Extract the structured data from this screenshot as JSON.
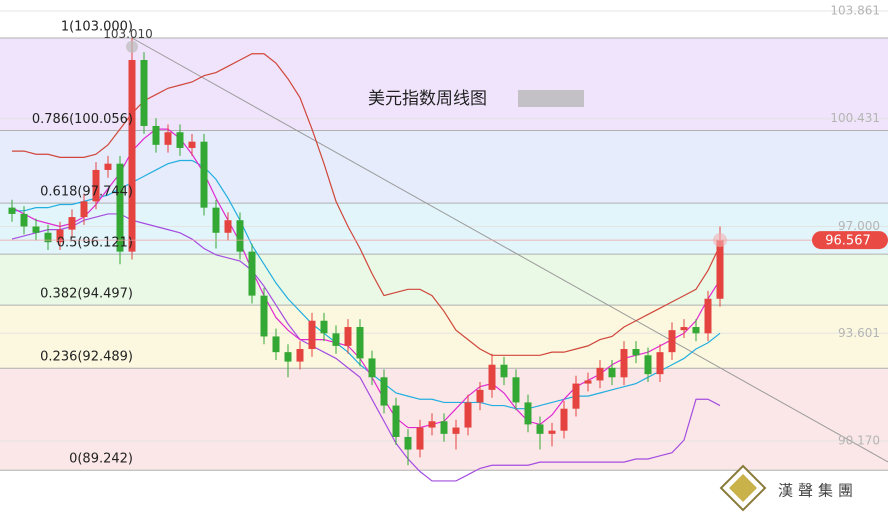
{
  "chart_data": {
    "type": "candlestick",
    "title": "美元指数周线图",
    "brand": "漢聲集團",
    "ylim": [
      87.88,
      104.21
    ],
    "yticks": [
      103.861,
      100.431,
      {
        "value": 97,
        "label": "97.000"
      },
      93.601,
      {
        "value": 90.17,
        "label": "90.170"
      }
    ],
    "grid": true,
    "up_color": "#e5433f",
    "down_color": "#34a834",
    "fib_levels": [
      {
        "value": 103.0,
        "label": "1(103.000)"
      },
      {
        "value": 100.056,
        "label": "0.786(100.056)"
      },
      {
        "value": 97.744,
        "label": "0.618(97.744)"
      },
      {
        "value": 96.121,
        "label": "0.5(96.121)"
      },
      {
        "value": 94.497,
        "label": "0.382(94.497)"
      },
      {
        "value": 92.489,
        "label": "0.236(92.489)"
      },
      {
        "value": 89.242,
        "label": "0(89.242)"
      }
    ],
    "fib_colors": [
      "#efe4fb",
      "#e6ecfb",
      "#e2f5fb",
      "#eaf8e6",
      "#fbf8df",
      "#fbe7e7"
    ],
    "high_label": {
      "value": 103.01,
      "label": "103.010"
    },
    "last_label": {
      "value": 96.567,
      "label": "96.567"
    },
    "candles": {
      "open": [
        97.6,
        97.4,
        97.0,
        96.8,
        96.5,
        96.9,
        97.3,
        97.8,
        98.8,
        99.0,
        96.2,
        102.3,
        100.2,
        99.6,
        100.0,
        99.5,
        99.7,
        97.6,
        96.8,
        97.2,
        96.2,
        94.8,
        93.5,
        93.0,
        92.7,
        93.1,
        94.0,
        93.6,
        93.2,
        93.8,
        92.8,
        92.2,
        91.3,
        90.3,
        89.9,
        90.6,
        90.8,
        90.4,
        90.6,
        91.4,
        91.8,
        92.6,
        92.2,
        91.4,
        90.7,
        90.4,
        90.5,
        91.2,
        92.0,
        92.1,
        92.5,
        92.2,
        93.1,
        92.9,
        92.3,
        93.0,
        93.7,
        93.8,
        93.6,
        94.7
      ],
      "high": [
        97.85,
        97.65,
        97.25,
        97.05,
        97.15,
        97.55,
        98.05,
        99.05,
        99.25,
        99.25,
        103.01,
        102.55,
        100.45,
        100.25,
        100.25,
        99.95,
        99.95,
        97.85,
        97.45,
        97.45,
        96.45,
        95.05,
        93.75,
        93.25,
        93.35,
        94.25,
        94.25,
        93.85,
        94.05,
        94.05,
        93.05,
        92.45,
        91.55,
        90.55,
        90.85,
        91.05,
        91.05,
        90.85,
        91.65,
        92.05,
        92.95,
        92.85,
        92.45,
        91.65,
        90.95,
        90.75,
        91.45,
        92.25,
        92.35,
        92.75,
        92.75,
        93.35,
        93.35,
        93.15,
        93.25,
        93.95,
        94.05,
        94.05,
        94.95,
        97.0
      ],
      "low": [
        97.15,
        96.75,
        96.55,
        96.25,
        96.25,
        96.65,
        97.05,
        97.55,
        98.55,
        95.8,
        95.95,
        99.95,
        99.35,
        99.35,
        99.25,
        99.25,
        97.35,
        96.3,
        96.55,
        95.95,
        94.55,
        93.25,
        92.75,
        92.2,
        92.45,
        92.85,
        93.35,
        92.95,
        92.95,
        92.55,
        91.95,
        91.05,
        90.05,
        89.4,
        89.65,
        90.35,
        90.15,
        89.9,
        90.35,
        91.15,
        91.55,
        91.95,
        91.15,
        90.45,
        89.9,
        90.0,
        90.25,
        90.95,
        91.75,
        91.85,
        91.95,
        91.95,
        92.65,
        92.05,
        92.05,
        92.75,
        93.45,
        93.35,
        93.35,
        94.45
      ],
      "close": [
        97.4,
        97.0,
        96.8,
        96.5,
        96.9,
        97.3,
        97.8,
        98.8,
        99.0,
        96.2,
        102.3,
        100.2,
        99.6,
        100.0,
        99.5,
        99.7,
        97.6,
        96.8,
        97.2,
        96.2,
        94.8,
        93.5,
        93.0,
        92.7,
        93.1,
        94.0,
        93.6,
        93.2,
        93.8,
        92.8,
        92.2,
        91.3,
        90.3,
        89.9,
        90.6,
        90.8,
        90.4,
        90.6,
        91.4,
        91.8,
        92.6,
        92.2,
        91.4,
        90.7,
        90.4,
        90.5,
        91.2,
        92.0,
        92.1,
        92.5,
        92.2,
        93.1,
        92.9,
        92.3,
        93.0,
        93.7,
        93.8,
        93.6,
        94.7,
        96.567
      ]
    },
    "lines": [
      {
        "color": "#d0463a",
        "values": [
          99.4,
          99.4,
          99.3,
          99.3,
          99.2,
          99.2,
          99.2,
          99.3,
          99.6,
          100.1,
          100.6,
          101.0,
          101.2,
          101.4,
          101.5,
          101.6,
          101.8,
          101.9,
          102.1,
          102.3,
          102.5,
          102.5,
          102.2,
          101.7,
          101.1,
          100.1,
          99.0,
          97.8,
          97.0,
          96.3,
          95.5,
          94.8,
          94.9,
          95.0,
          95.0,
          94.8,
          94.3,
          93.7,
          93.4,
          93.1,
          92.9,
          92.9,
          92.9,
          92.9,
          92.9,
          93.0,
          93.0,
          93.1,
          93.2,
          93.4,
          93.5,
          93.8,
          94.0,
          94.2,
          94.4,
          94.6,
          94.8,
          95.0,
          95.6,
          96.4
        ]
      },
      {
        "color": "#a44ee0",
        "values": [
          96.6,
          96.7,
          96.8,
          96.9,
          96.9,
          97.0,
          97.2,
          97.3,
          97.4,
          97.4,
          97.2,
          97.1,
          97.0,
          96.9,
          96.8,
          96.6,
          96.3,
          96.1,
          96.0,
          95.9,
          95.6,
          95.1,
          94.5,
          93.9,
          93.4,
          93.2,
          93.0,
          92.8,
          92.5,
          92.2,
          91.5,
          90.8,
          90.1,
          89.6,
          89.2,
          88.9,
          88.9,
          88.9,
          89.1,
          89.3,
          89.4,
          89.4,
          89.4,
          89.4,
          89.5,
          89.5,
          89.5,
          89.5,
          89.5,
          89.5,
          89.5,
          89.5,
          89.6,
          89.6,
          89.7,
          89.8,
          90.2,
          91.5,
          91.5,
          91.3
        ]
      },
      {
        "color": "#22aee0",
        "values": [
          97.5,
          97.5,
          97.6,
          97.6,
          97.7,
          97.7,
          97.8,
          97.9,
          98.0,
          98.2,
          98.4,
          98.6,
          98.8,
          99.0,
          99.1,
          99.1,
          98.9,
          98.5,
          97.9,
          97.2,
          96.4,
          95.8,
          95.2,
          94.7,
          94.3,
          93.9,
          93.6,
          93.3,
          93.0,
          92.6,
          92.3,
          92.0,
          91.7,
          91.6,
          91.5,
          91.5,
          91.4,
          91.4,
          91.4,
          91.4,
          91.3,
          91.3,
          91.2,
          91.2,
          91.3,
          91.4,
          91.5,
          91.6,
          91.6,
          91.7,
          91.8,
          91.9,
          92.0,
          92.2,
          92.4,
          92.6,
          92.8,
          93.1,
          93.3,
          93.6
        ]
      },
      {
        "color": "#e02ad0",
        "values": [
          97.6,
          97.4,
          97.2,
          97.1,
          97.0,
          97.1,
          97.3,
          97.7,
          98.2,
          98.7,
          99.4,
          99.8,
          100.1,
          100.1,
          99.8,
          99.3,
          98.7,
          97.9,
          97.2,
          96.5,
          95.6,
          94.8,
          94.1,
          93.7,
          93.4,
          93.4,
          93.4,
          93.3,
          93.2,
          92.8,
          92.2,
          91.5,
          90.9,
          90.6,
          90.6,
          90.7,
          90.8,
          91.2,
          91.6,
          91.9,
          92.0,
          91.7,
          91.2,
          90.8,
          90.7,
          91.0,
          91.5,
          91.9,
          92.1,
          92.3,
          92.6,
          92.8,
          92.9,
          93.0,
          93.2,
          93.4,
          93.6,
          94.0,
          94.7,
          95.3
        ]
      }
    ]
  }
}
